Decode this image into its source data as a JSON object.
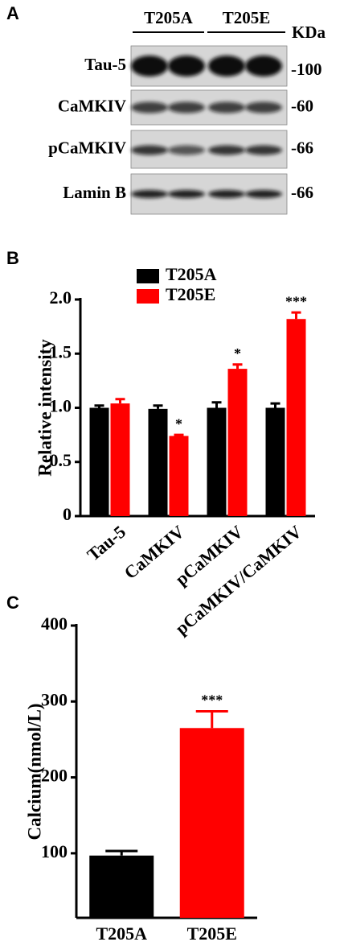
{
  "blot": {
    "panel_label": "A",
    "groups": [
      "T205A",
      "T205E"
    ],
    "unit": "KDa",
    "rows": [
      {
        "label": "Tau-5",
        "size": "-100"
      },
      {
        "label": "CaMKIV",
        "size": "-60"
      },
      {
        "label": "pCaMKIV",
        "size": "-66"
      },
      {
        "label": "Lamin B",
        "size": "-66"
      }
    ]
  },
  "chart_data": [
    {
      "type": "bar",
      "panel_label": "B",
      "y_label": "Relative intensity",
      "categories": [
        "Tau-5",
        "CaMKIV",
        "pCaMKIV",
        "pCaMKIV/CaMKIV"
      ],
      "series": [
        {
          "name": "T205A",
          "color": "#000000",
          "values": [
            1.0,
            0.99,
            1.0,
            1.0
          ],
          "errors": [
            0.02,
            0.03,
            0.05,
            0.04
          ]
        },
        {
          "name": "T205E",
          "color": "#ff0000",
          "values": [
            1.04,
            0.74,
            1.36,
            1.82
          ],
          "errors": [
            0.04,
            0.01,
            0.04,
            0.06
          ],
          "significance": [
            null,
            "*",
            "*",
            "***"
          ]
        }
      ],
      "ylim": [
        0,
        2
      ],
      "yticks": [
        0,
        0.5,
        {
          "value": 1,
          "label": "1.0"
        },
        1.5,
        {
          "value": 2,
          "label": "2.0"
        }
      ],
      "legend": "top-left"
    },
    {
      "type": "bar",
      "panel_label": "C",
      "y_label": "Calcium(nmol/L)",
      "categories": [
        "T205A",
        "T205E"
      ],
      "values": [
        97,
        265
      ],
      "errors": [
        6,
        22
      ],
      "colors": [
        "#000000",
        "#ff0000"
      ],
      "significance": [
        null,
        "***"
      ],
      "ylim": [
        15,
        400
      ],
      "yticks": [
        100,
        200,
        300,
        400
      ]
    }
  ]
}
